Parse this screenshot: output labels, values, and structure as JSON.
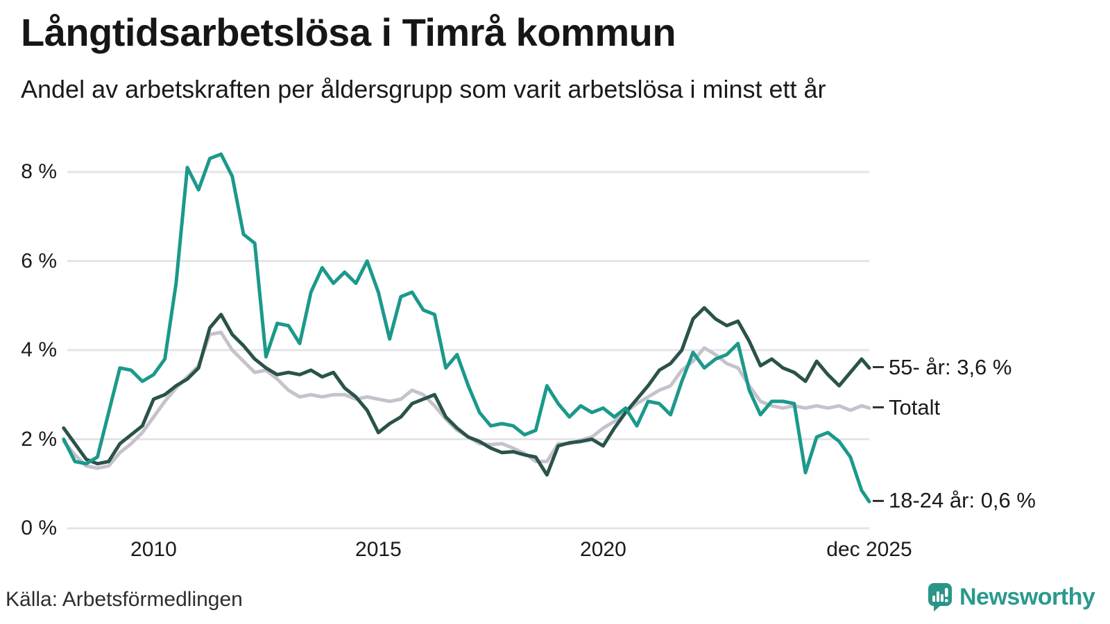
{
  "header": {
    "title": "Långtidsarbetslösa i Timrå kommun",
    "subtitle": "Andel av arbetskraften per åldersgrupp som varit arbetslösa i minst ett år"
  },
  "footer": {
    "source": "Källa: Arbetsförmedlingen",
    "brand": "Newsworthy"
  },
  "colors": {
    "teal_line": "#1b998b",
    "dark_green_line": "#2a5349",
    "gray_line": "#c5c2cd",
    "grid": "#e4e3e8",
    "text": "#1a1a1a",
    "brand_teal": "#2a9a8d"
  },
  "chart_data": {
    "type": "line",
    "title": "Långtidsarbetslösa i Timrå kommun",
    "subtitle": "Andel av arbetskraften per åldersgrupp som varit arbetslösa i minst ett år",
    "unit": "%",
    "grid": true,
    "xlim": [
      2008.08,
      2025.92
    ],
    "ylim": [
      0,
      8
    ],
    "y_ticks": [
      {
        "label": "8 %",
        "value": 8
      },
      {
        "label": "6 %",
        "value": 6
      },
      {
        "label": "4 %",
        "value": 4
      },
      {
        "label": "2 %",
        "value": 2
      },
      {
        "label": "0 %",
        "value": 0
      }
    ],
    "x_ticks": [
      {
        "label": "2010",
        "value": 2010
      },
      {
        "label": "2015",
        "value": 2015
      },
      {
        "label": "2020",
        "value": 2020
      },
      {
        "label": "dec 2025",
        "value": 2025.92
      }
    ],
    "x": [
      2008.0,
      2008.25,
      2008.5,
      2008.75,
      2009.0,
      2009.25,
      2009.5,
      2009.75,
      2010.0,
      2010.25,
      2010.5,
      2010.75,
      2011.0,
      2011.25,
      2011.5,
      2011.75,
      2012.0,
      2012.25,
      2012.5,
      2012.75,
      2013.0,
      2013.25,
      2013.5,
      2013.75,
      2014.0,
      2014.25,
      2014.5,
      2014.75,
      2015.0,
      2015.25,
      2015.5,
      2015.75,
      2016.0,
      2016.25,
      2016.5,
      2016.75,
      2017.0,
      2017.25,
      2017.5,
      2017.75,
      2018.0,
      2018.25,
      2018.5,
      2018.75,
      2019.0,
      2019.25,
      2019.5,
      2019.75,
      2020.0,
      2020.25,
      2020.5,
      2020.75,
      2021.0,
      2021.25,
      2021.5,
      2021.75,
      2022.0,
      2022.25,
      2022.5,
      2022.75,
      2023.0,
      2023.25,
      2023.5,
      2023.75,
      2024.0,
      2024.25,
      2024.5,
      2024.75,
      2025.0,
      2025.25,
      2025.5,
      2025.75,
      2025.92
    ],
    "series": [
      {
        "name": "Totalt",
        "color": "#c5c2cd",
        "values": [
          1.95,
          1.65,
          1.4,
          1.35,
          1.4,
          1.7,
          1.9,
          2.15,
          2.5,
          2.85,
          3.15,
          3.4,
          3.65,
          4.35,
          4.4,
          4.0,
          3.75,
          3.5,
          3.55,
          3.35,
          3.1,
          2.95,
          3.0,
          2.95,
          3.0,
          3.0,
          2.9,
          2.95,
          2.9,
          2.85,
          2.9,
          3.1,
          3.0,
          2.75,
          2.45,
          2.2,
          2.05,
          1.9,
          1.88,
          1.9,
          1.8,
          1.68,
          1.5,
          1.5,
          1.9,
          1.9,
          1.98,
          2.05,
          2.25,
          2.4,
          2.6,
          2.8,
          2.95,
          3.1,
          3.2,
          3.55,
          3.75,
          4.05,
          3.9,
          3.7,
          3.6,
          3.2,
          2.85,
          2.75,
          2.7,
          2.75,
          2.7,
          2.75,
          2.7,
          2.75,
          2.65,
          2.75,
          2.7
        ]
      },
      {
        "name": "55- år",
        "color": "#2a5349",
        "values": [
          2.25,
          1.9,
          1.55,
          1.45,
          1.5,
          1.9,
          2.1,
          2.3,
          2.9,
          3.0,
          3.2,
          3.35,
          3.6,
          4.5,
          4.8,
          4.35,
          4.1,
          3.8,
          3.6,
          3.45,
          3.5,
          3.45,
          3.55,
          3.4,
          3.5,
          3.15,
          2.95,
          2.65,
          2.15,
          2.35,
          2.5,
          2.8,
          2.9,
          3.0,
          2.5,
          2.25,
          2.05,
          1.95,
          1.8,
          1.7,
          1.72,
          1.65,
          1.6,
          1.2,
          1.85,
          1.92,
          1.95,
          2.0,
          1.85,
          2.25,
          2.6,
          2.9,
          3.2,
          3.55,
          3.7,
          4.0,
          4.7,
          4.95,
          4.7,
          4.55,
          4.65,
          4.2,
          3.65,
          3.8,
          3.6,
          3.5,
          3.3,
          3.75,
          3.45,
          3.2,
          3.5,
          3.8,
          3.6
        ]
      },
      {
        "name": "18-24 år",
        "color": "#1b998b",
        "values": [
          2.0,
          1.5,
          1.45,
          1.6,
          2.6,
          3.6,
          3.55,
          3.3,
          3.45,
          3.8,
          5.5,
          8.1,
          7.6,
          8.3,
          8.4,
          7.9,
          6.6,
          6.4,
          3.85,
          4.6,
          4.55,
          4.15,
          5.3,
          5.85,
          5.5,
          5.75,
          5.5,
          6.0,
          5.3,
          4.25,
          5.2,
          5.3,
          4.9,
          4.8,
          3.6,
          3.9,
          3.2,
          2.6,
          2.3,
          2.35,
          2.3,
          2.1,
          2.2,
          3.2,
          2.8,
          2.5,
          2.75,
          2.6,
          2.7,
          2.5,
          2.7,
          2.3,
          2.85,
          2.8,
          2.55,
          3.3,
          3.95,
          3.6,
          3.8,
          3.9,
          4.15,
          3.1,
          2.55,
          2.85,
          2.85,
          2.8,
          1.25,
          2.05,
          2.15,
          1.95,
          1.6,
          0.85,
          0.6
        ]
      }
    ],
    "end_labels": [
      {
        "label": "55- år: 3,6 %",
        "value": 3.6
      },
      {
        "label": "Totalt",
        "value": 2.7
      },
      {
        "label": "18-24 år: 0,6 %",
        "value": 0.6
      }
    ]
  }
}
